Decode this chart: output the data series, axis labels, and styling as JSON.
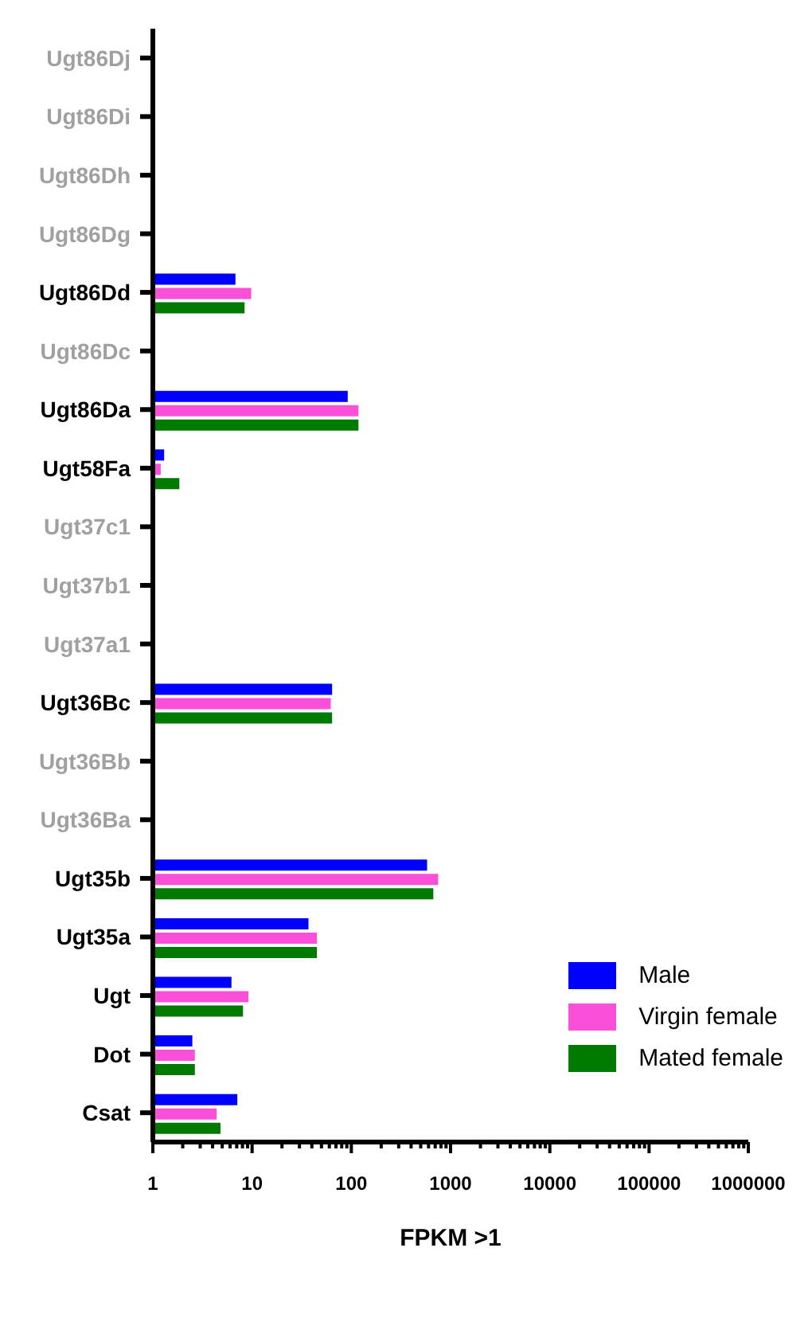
{
  "chart_data": {
    "type": "bar",
    "orientation": "horizontal",
    "xlabel": "FPKM >1",
    "log": "x",
    "legend": "bottom right",
    "grid": false,
    "categories": [
      "Ugt86Dj",
      "Ugt86Di",
      "Ugt86Dh",
      "Ugt86Dg",
      "Ugt86Dd",
      "Ugt86Dc",
      "Ugt86Da",
      "Ugt58Fa",
      "Ugt37c1",
      "Ugt37b1",
      "Ugt37a1",
      "Ugt36Bc",
      "Ugt36Bb",
      "Ugt36Ba",
      "Ugt35b",
      "Ugt35a",
      "Ugt",
      "Dot",
      "Csat"
    ],
    "series": [
      {
        "name": "Male",
        "color": "#0000ff",
        "values": [
          null,
          null,
          null,
          null,
          6.8,
          null,
          92,
          1.3,
          null,
          null,
          null,
          64,
          null,
          null,
          580,
          37,
          6.2,
          2.5,
          7.1
        ]
      },
      {
        "name": "Virgin female",
        "color": "#f94fd9",
        "values": [
          null,
          null,
          null,
          null,
          9.8,
          null,
          118,
          1.2,
          null,
          null,
          null,
          62,
          null,
          null,
          750,
          45,
          9.2,
          2.65,
          4.4
        ]
      },
      {
        "name": "Mated female",
        "color": "#007a00",
        "values": [
          null,
          null,
          null,
          null,
          8.4,
          null,
          118,
          1.85,
          null,
          null,
          null,
          64,
          null,
          null,
          670,
          45,
          8.1,
          2.65,
          4.8
        ]
      }
    ],
    "xlim": [
      1,
      1000000
    ],
    "xticks": [
      1,
      {
        "value": 2,
        "label": null
      },
      {
        "value": 3,
        "label": null
      },
      {
        "value": 4,
        "label": null
      },
      {
        "value": 5,
        "label": null
      },
      {
        "value": 6,
        "label": null
      },
      {
        "value": 7,
        "label": null
      },
      {
        "value": 8,
        "label": null
      },
      {
        "value": 9,
        "label": null
      },
      10,
      {
        "value": 20,
        "label": null
      },
      {
        "value": 30,
        "label": null
      },
      {
        "value": 40,
        "label": null
      },
      {
        "value": 50,
        "label": null
      },
      {
        "value": 60,
        "label": null
      },
      {
        "value": 70,
        "label": null
      },
      {
        "value": 80,
        "label": null
      },
      {
        "value": 90,
        "label": null
      },
      100,
      {
        "value": 200,
        "label": null
      },
      {
        "value": 300,
        "label": null
      },
      {
        "value": 400,
        "label": null
      },
      {
        "value": 500,
        "label": null
      },
      {
        "value": 600,
        "label": null
      },
      {
        "value": 700,
        "label": null
      },
      {
        "value": 800,
        "label": null
      },
      {
        "value": 900,
        "label": null
      },
      1000,
      {
        "value": 2000,
        "label": null
      },
      {
        "value": 3000,
        "label": null
      },
      {
        "value": 4000,
        "label": null
      },
      {
        "value": 5000,
        "label": null
      },
      {
        "value": 6000,
        "label": null
      },
      {
        "value": 7000,
        "label": null
      },
      {
        "value": 8000,
        "label": null
      },
      {
        "value": 9000,
        "label": null
      },
      10000,
      {
        "value": 20000,
        "label": null
      },
      {
        "value": 30000,
        "label": null
      },
      {
        "value": 40000,
        "label": null
      },
      {
        "value": 50000,
        "label": null
      },
      {
        "value": 60000,
        "label": null
      },
      {
        "value": 70000,
        "label": null
      },
      {
        "value": 80000,
        "label": null
      },
      {
        "value": 90000,
        "label": null
      },
      100000,
      {
        "value": 200000,
        "label": null
      },
      {
        "value": 300000,
        "label": null
      },
      {
        "value": 400000,
        "label": null
      },
      {
        "value": 500000,
        "label": null
      },
      {
        "value": 600000,
        "label": null
      },
      {
        "value": 700000,
        "label": null
      },
      {
        "value": 800000,
        "label": null
      },
      {
        "value": 900000,
        "label": null
      },
      1000000
    ]
  }
}
